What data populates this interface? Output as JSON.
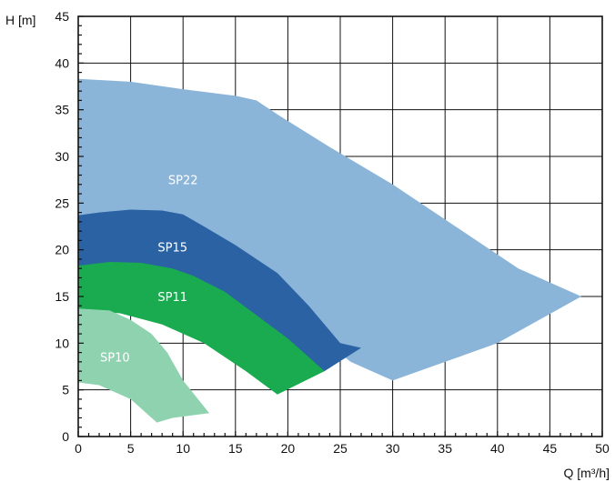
{
  "chart_data": {
    "type": "area",
    "xlabel": "Q [m³/h]",
    "ylabel": "H [m]",
    "xlim": [
      0,
      50
    ],
    "ylim": [
      0,
      45
    ],
    "xticks": [
      0,
      5,
      10,
      15,
      20,
      25,
      30,
      35,
      40,
      45,
      50
    ],
    "yticks": [
      0,
      5,
      10,
      15,
      20,
      25,
      30,
      35,
      40,
      45
    ],
    "grid": true,
    "series": [
      {
        "name": "SP22",
        "color": "#8bb4d9",
        "label_at": [
          10,
          27.5
        ],
        "polygon": [
          [
            0,
            38.3
          ],
          [
            5,
            38
          ],
          [
            10,
            37.2
          ],
          [
            15,
            36.5
          ],
          [
            17,
            36
          ],
          [
            19,
            34.5
          ],
          [
            24,
            31
          ],
          [
            30,
            27
          ],
          [
            36,
            22.5
          ],
          [
            42,
            18
          ],
          [
            48,
            15
          ],
          [
            40,
            10
          ],
          [
            35,
            8
          ],
          [
            30,
            6
          ],
          [
            26,
            8
          ],
          [
            22,
            11.5
          ],
          [
            18,
            15.5
          ],
          [
            14,
            19
          ],
          [
            10,
            21.5
          ],
          [
            5,
            23
          ],
          [
            0,
            23.5
          ]
        ]
      },
      {
        "name": "SP15",
        "color": "#2a62a4",
        "label_at": [
          9,
          20.3
        ],
        "polygon": [
          [
            0,
            23.7
          ],
          [
            2,
            24
          ],
          [
            5,
            24.3
          ],
          [
            8,
            24.2
          ],
          [
            10,
            23.8
          ],
          [
            12,
            22.5
          ],
          [
            15,
            20.5
          ],
          [
            19,
            17.5
          ],
          [
            22,
            14
          ],
          [
            25,
            10
          ],
          [
            27,
            9.5
          ],
          [
            23.5,
            7
          ],
          [
            20,
            9
          ],
          [
            15,
            11.5
          ],
          [
            10,
            14
          ],
          [
            5,
            15.5
          ],
          [
            0,
            16
          ]
        ]
      },
      {
        "name": "SP11",
        "color": "#1aaa50",
        "label_at": [
          9,
          15
        ],
        "polygon": [
          [
            0,
            18.3
          ],
          [
            3,
            18.7
          ],
          [
            6,
            18.6
          ],
          [
            9,
            18
          ],
          [
            11,
            17.2
          ],
          [
            14,
            15.5
          ],
          [
            17,
            13
          ],
          [
            20,
            10.5
          ],
          [
            23.5,
            7
          ],
          [
            19,
            4.5
          ],
          [
            16,
            7
          ],
          [
            12,
            10
          ],
          [
            8,
            12
          ],
          [
            4,
            13.2
          ],
          [
            0,
            13.5
          ]
        ]
      },
      {
        "name": "SP10",
        "color": "#8fd2b0",
        "label_at": [
          3.5,
          8.5
        ],
        "polygon": [
          [
            0,
            13.7
          ],
          [
            3,
            13.5
          ],
          [
            5,
            12.5
          ],
          [
            7,
            11
          ],
          [
            8.5,
            9
          ],
          [
            10,
            6
          ],
          [
            12.5,
            2.5
          ],
          [
            9,
            2
          ],
          [
            7.5,
            1.5
          ],
          [
            5,
            4
          ],
          [
            2,
            5.5
          ],
          [
            0,
            5.8
          ]
        ]
      }
    ]
  }
}
